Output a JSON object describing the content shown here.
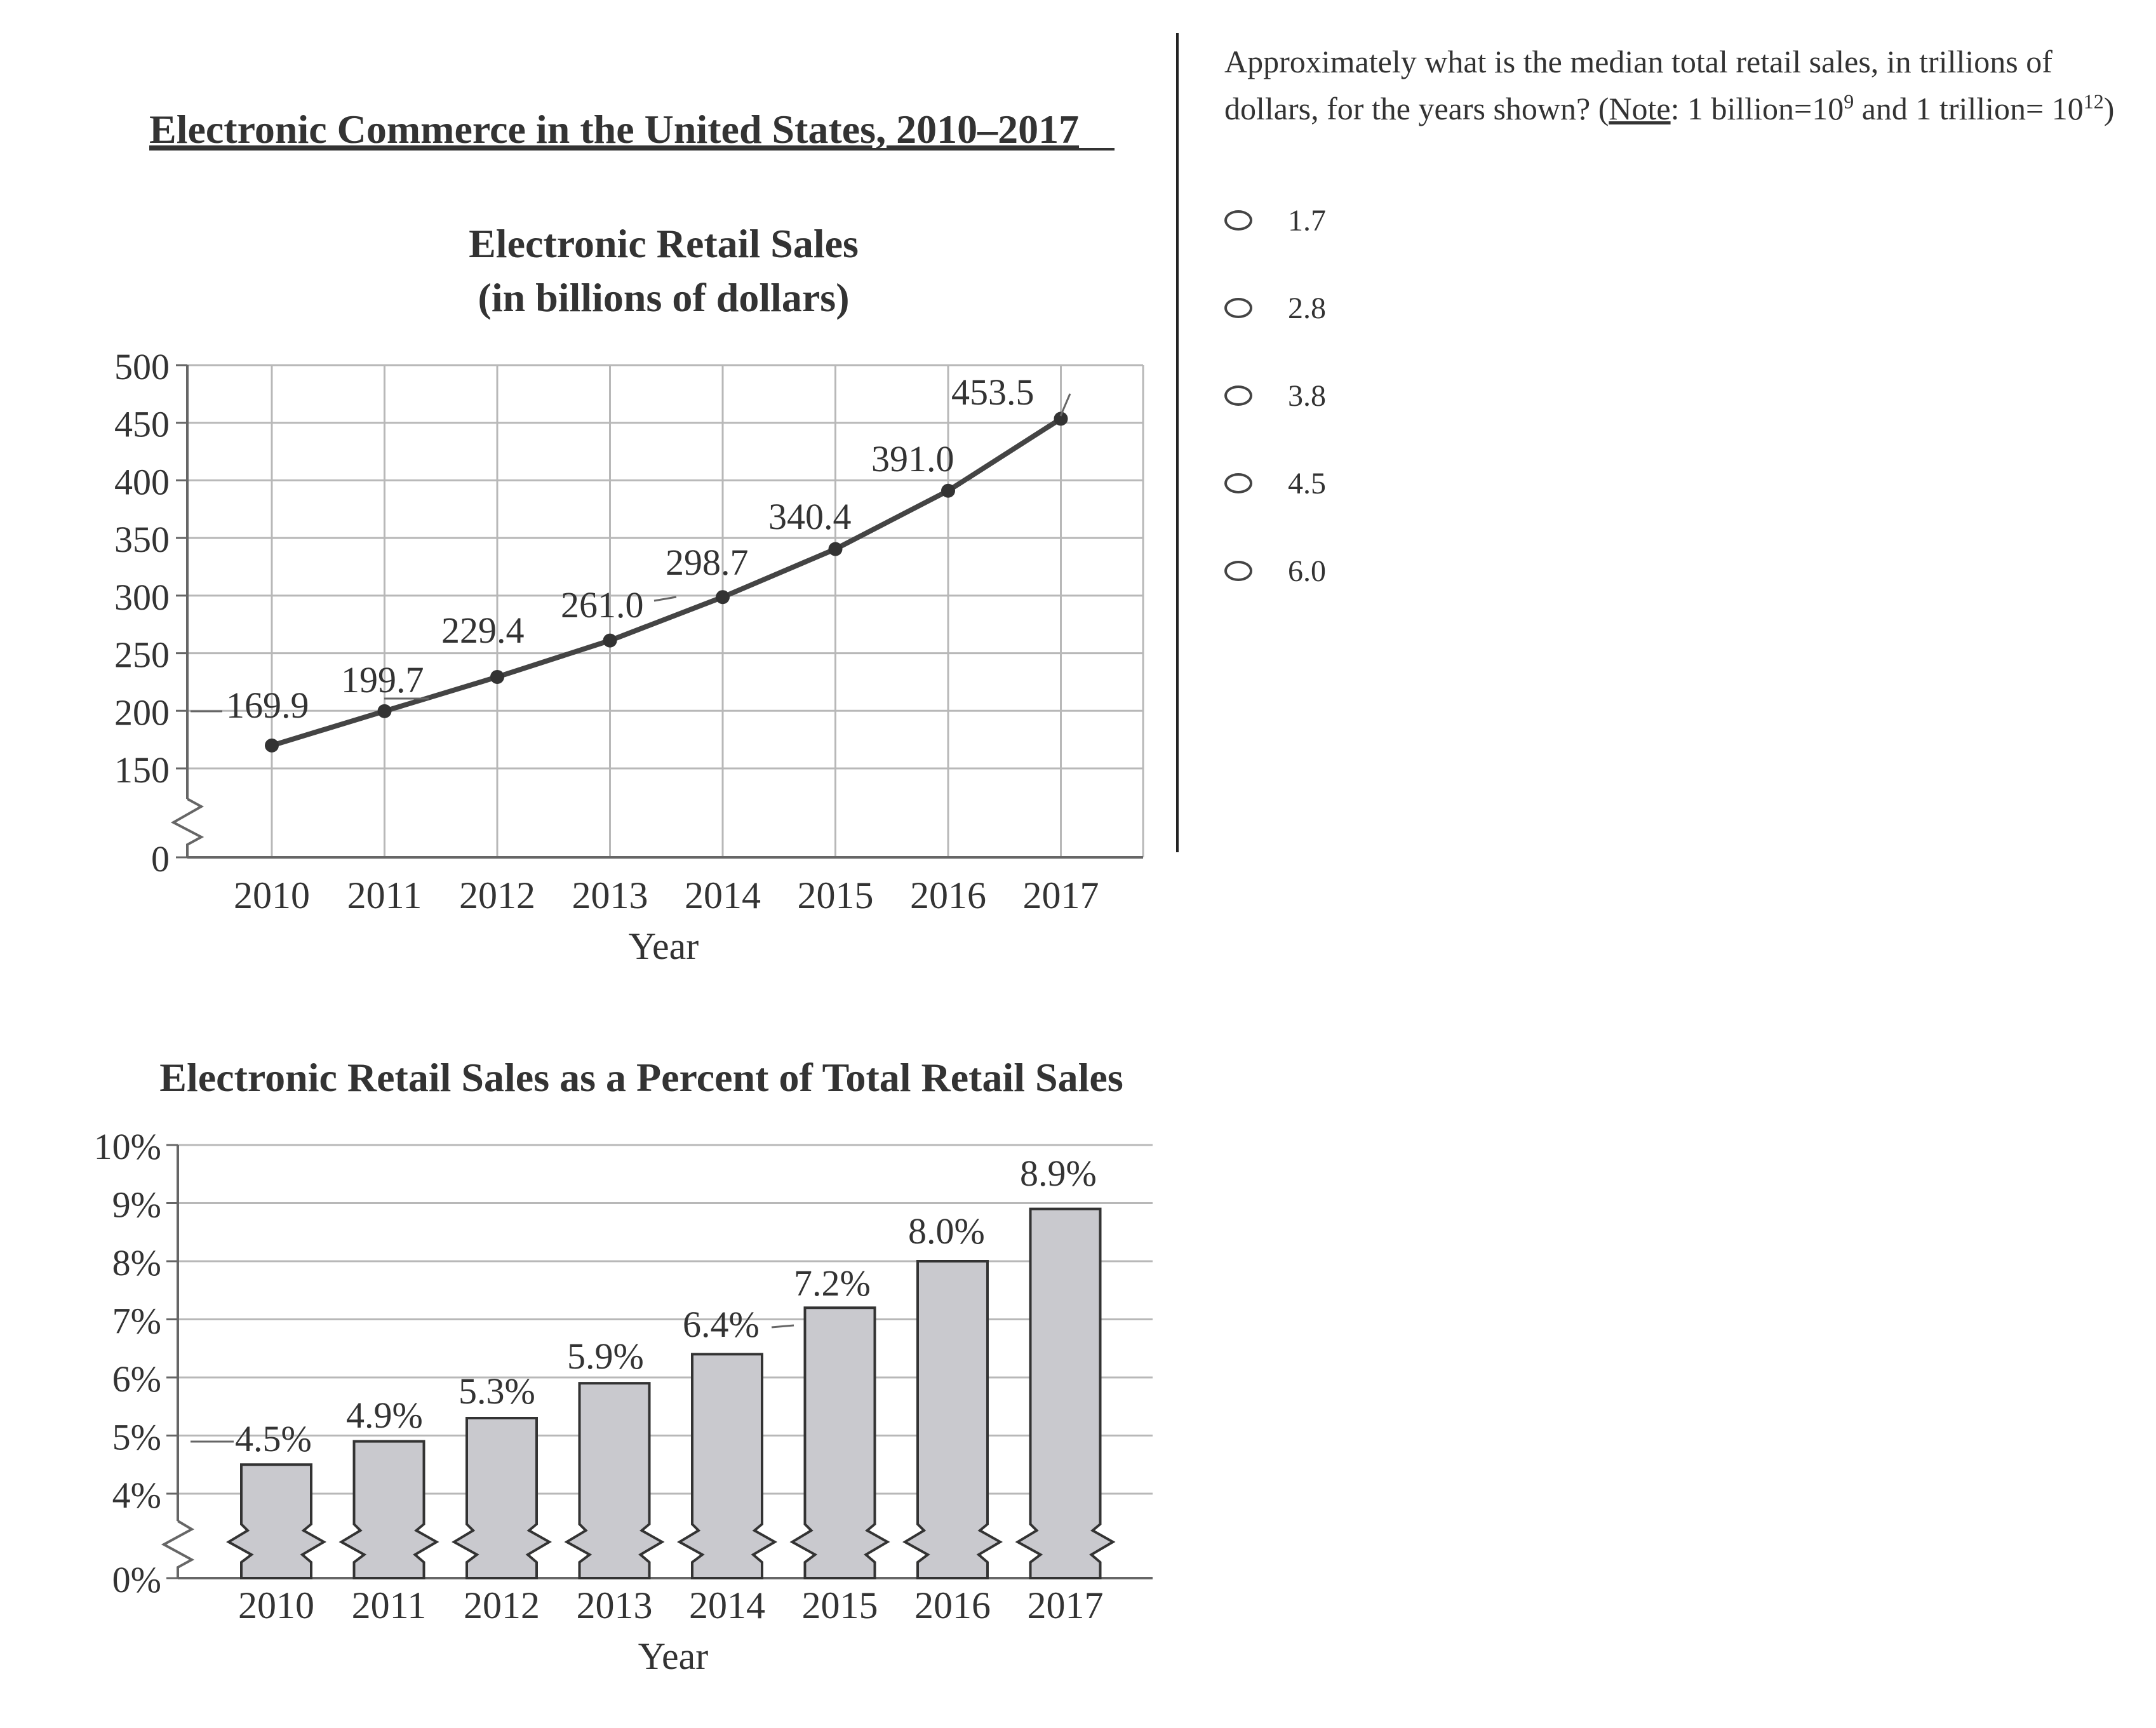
{
  "figure": {
    "title": "Electronic Commerce in the United States, 2010–2017"
  },
  "chart_data": [
    {
      "type": "line",
      "title": "Electronic Retail Sales",
      "subtitle": "(in billions of dollars)",
      "xlabel": "Year",
      "ylabel": "",
      "x": [
        "2010",
        "2011",
        "2012",
        "2013",
        "2014",
        "2015",
        "2016",
        "2017"
      ],
      "values": [
        169.9,
        199.7,
        229.4,
        261.0,
        298.7,
        340.4,
        391.0,
        453.5
      ],
      "value_labels": [
        "169.9",
        "199.7",
        "229.4",
        "261.0",
        "298.7",
        "340.4",
        "391.0",
        "453.5"
      ],
      "yticks": [
        0,
        150,
        200,
        250,
        300,
        350,
        400,
        450,
        500
      ],
      "ytick_labels": [
        "0",
        "150",
        "200",
        "250",
        "300",
        "350",
        "400",
        "450",
        "500"
      ],
      "ylim": [
        0,
        500
      ],
      "axis_break": "between 0 and 150",
      "grid": true
    },
    {
      "type": "bar",
      "title": "Electronic Retail Sales as a Percent of Total Retail Sales",
      "xlabel": "Year",
      "ylabel": "",
      "categories": [
        "2010",
        "2011",
        "2012",
        "2013",
        "2014",
        "2015",
        "2016",
        "2017"
      ],
      "values": [
        4.5,
        4.9,
        5.3,
        5.9,
        6.4,
        7.2,
        8.0,
        8.9
      ],
      "value_labels": [
        "4.5%",
        "4.9%",
        "5.3%",
        "5.9%",
        "6.4%",
        "7.2%",
        "8.0%",
        "8.9%"
      ],
      "yticks": [
        0,
        4,
        5,
        6,
        7,
        8,
        9,
        10
      ],
      "ytick_labels": [
        "0%",
        "4%",
        "5%",
        "6%",
        "7%",
        "8%",
        "9%",
        "10%"
      ],
      "ylim": [
        0,
        10
      ],
      "axis_break": "between 0% and 4%",
      "grid": true,
      "bar_color": "#c9c9ce"
    }
  ],
  "question": {
    "text_before": "Approximately what is the median total retail sales, in trillions of dollars, for the years shown? (",
    "note_label": "Note",
    "text_mid1": ": 1 billion=10",
    "sup1": "9",
    "text_mid2": " and 1 trillion= 10",
    "sup2": "12",
    "text_after": ")",
    "choices": [
      "1.7",
      "2.8",
      "3.8",
      "4.5",
      "6.0"
    ]
  }
}
